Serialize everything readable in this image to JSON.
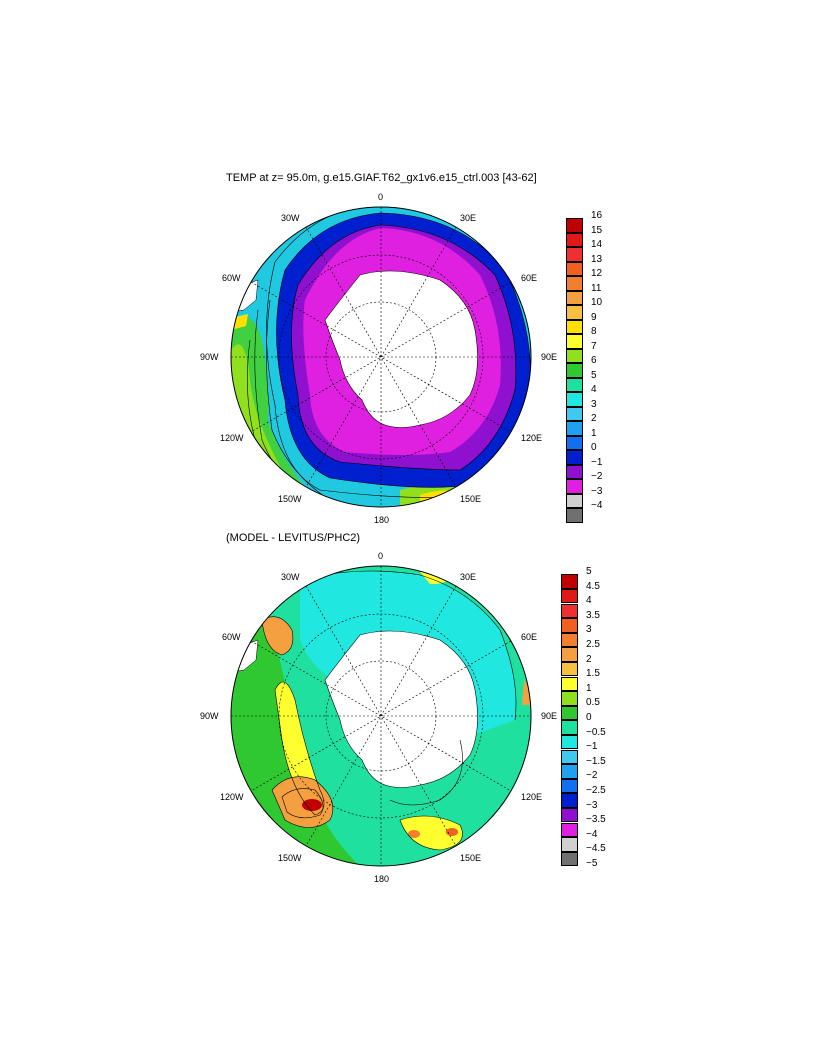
{
  "panels": [
    {
      "title": "TEMP at z=  95.0m, g.e15.GIAF.T62_gx1v6.e15_ctrl.003 [43-62]",
      "lon_labels": [
        "0",
        "30E",
        "60E",
        "90E",
        "120E",
        "150E",
        "180",
        "150W",
        "120W",
        "90W",
        "60W",
        "30W"
      ],
      "colorbar": {
        "labels": [
          "16",
          "15",
          "14",
          "13",
          "12",
          "11",
          "10",
          "9",
          "8",
          "7",
          "6",
          "5",
          "4",
          "3",
          "2",
          "1",
          "0",
          "−1",
          "−2",
          "−3",
          "−4"
        ],
        "colors": [
          "#c00000",
          "#e01818",
          "#f03030",
          "#f06020",
          "#f08030",
          "#f4a040",
          "#f8c040",
          "#ffe000",
          "#ffff30",
          "#90e020",
          "#30c830",
          "#20e0a0",
          "#20e8e0",
          "#40c8f0",
          "#20a0f0",
          "#1070f0",
          "#0020d0",
          "#9010d0",
          "#e020e0",
          "#d0d0d0",
          "#707070"
        ]
      }
    },
    {
      "title": "(MODEL - LEVITUS/PHC2)",
      "lon_labels": [
        "0",
        "30E",
        "60E",
        "90E",
        "120E",
        "150E",
        "180",
        "150W",
        "120W",
        "90W",
        "60W",
        "30W"
      ],
      "colorbar": {
        "labels": [
          "5",
          "4.5",
          "4",
          "3.5",
          "3",
          "2.5",
          "2",
          "1.5",
          "1",
          "0.5",
          "0",
          "−0.5",
          "−1",
          "−1.5",
          "−2",
          "−2.5",
          "−3",
          "−3.5",
          "−4",
          "−4.5",
          "−5"
        ],
        "colors": [
          "#c00000",
          "#e01818",
          "#f03030",
          "#f06020",
          "#f08030",
          "#f4a040",
          "#f8c040",
          "#ffff30",
          "#90e020",
          "#30c830",
          "#20e0a0",
          "#20e8e0",
          "#40c8f0",
          "#20a0f0",
          "#1070f0",
          "#0020d0",
          "#9010d0",
          "#e020e0",
          "#d0d0d0",
          "#707070"
        ]
      }
    }
  ]
}
